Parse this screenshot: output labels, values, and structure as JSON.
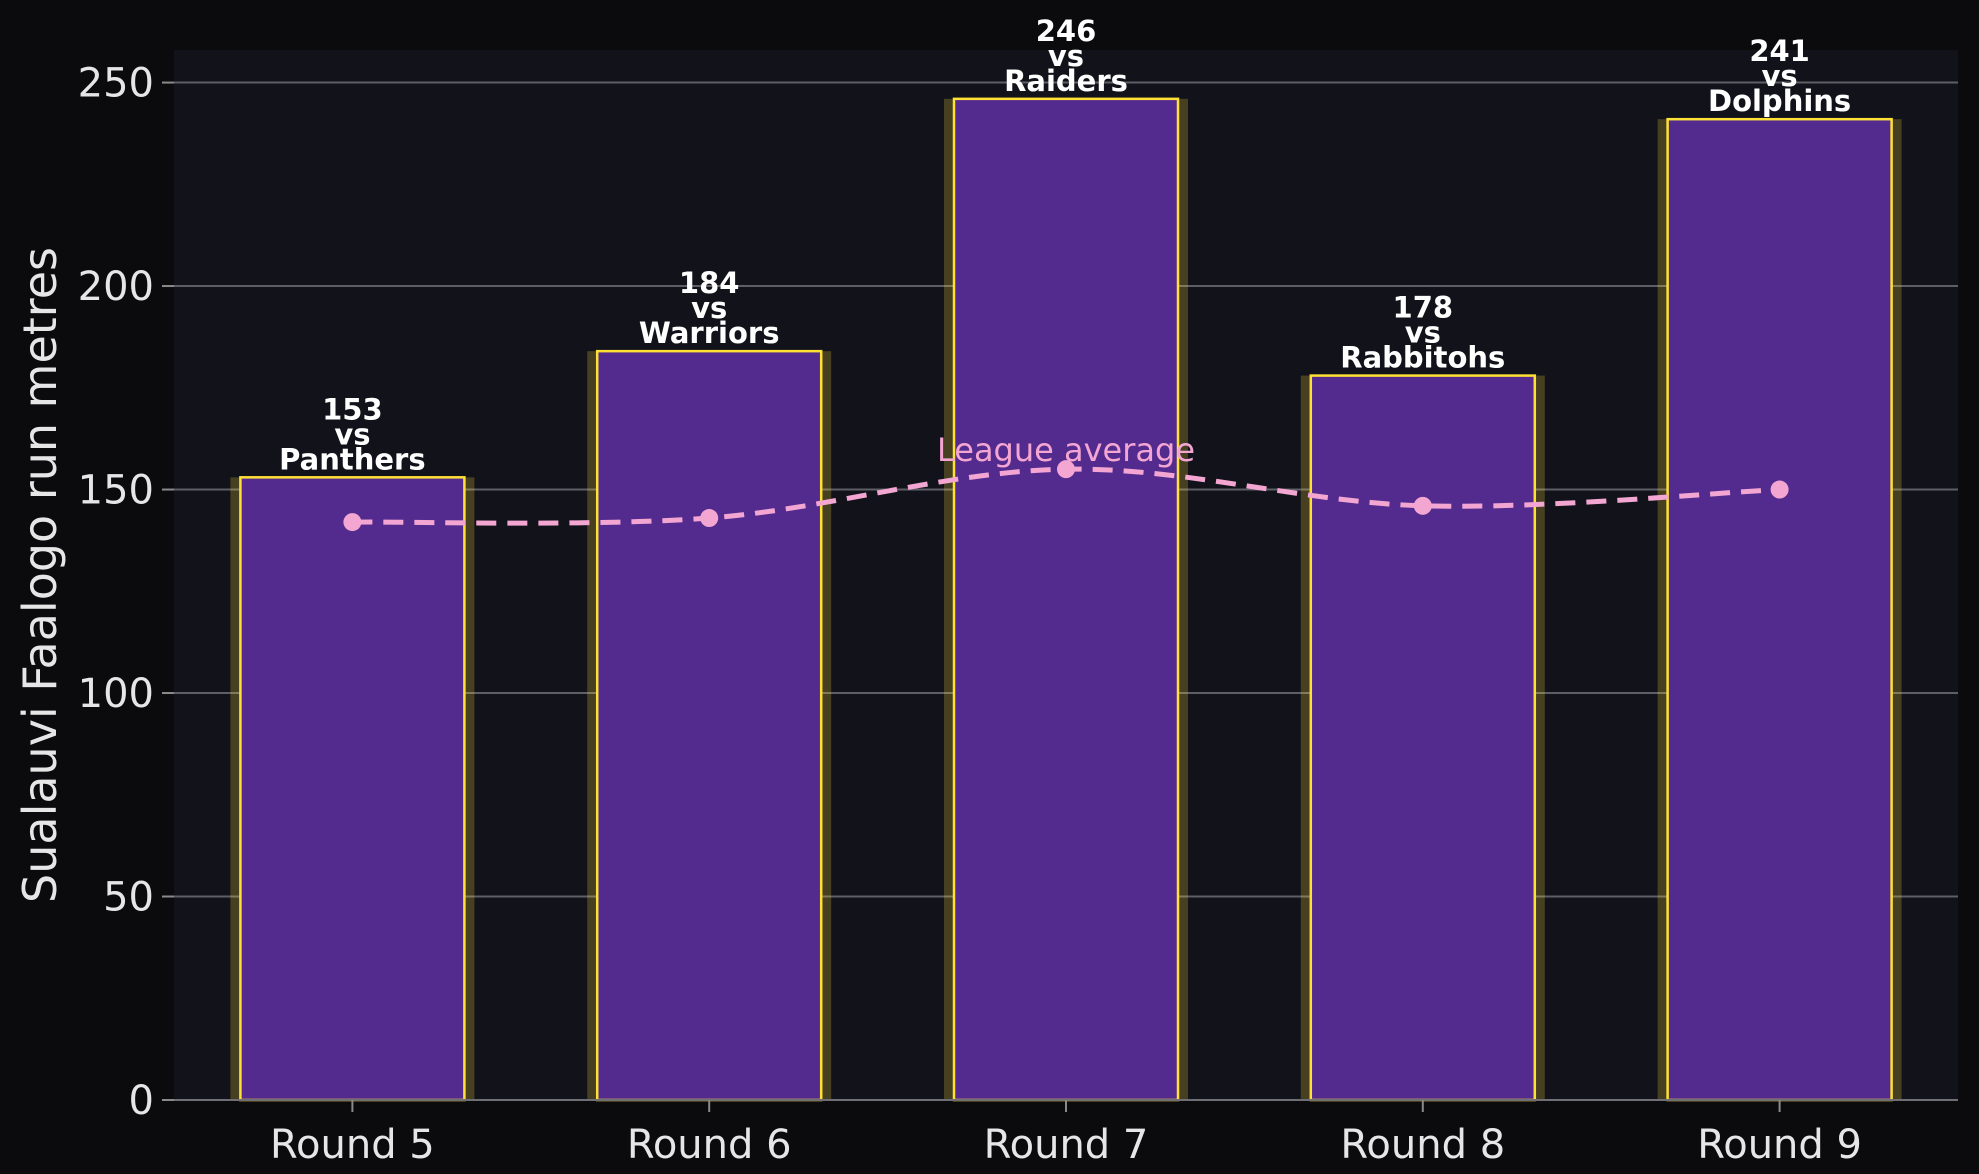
{
  "chart_data": {
    "type": "bar",
    "categories": [
      "Round 5",
      "Round 6",
      "Round 7",
      "Round 8",
      "Round 9"
    ],
    "series": [
      {
        "values": [
          153,
          184,
          246,
          178,
          241
        ],
        "color": "#532b8f"
      },
      {
        "name": "League average",
        "type": "line",
        "values": [
          142,
          143,
          155,
          146,
          150
        ],
        "color": "#f4a6d2"
      }
    ],
    "bar_labels": [
      [
        "153",
        "vs",
        "Panthers"
      ],
      [
        "184",
        "vs",
        "Warriors"
      ],
      [
        "246",
        "vs",
        "Raiders"
      ],
      [
        "178",
        "vs",
        "Rabbitohs"
      ],
      [
        "241",
        "vs",
        "Dolphins"
      ]
    ],
    "xlabel": "",
    "ylabel": "Sualauvi Faalogo run metres",
    "ylim": [
      0,
      258
    ],
    "yticks": [
      0,
      50,
      100,
      150,
      200,
      250
    ],
    "grid": true,
    "bar_edge_color": "#ffe135",
    "background": "#12131a",
    "page_background": "#0b0b0e"
  }
}
